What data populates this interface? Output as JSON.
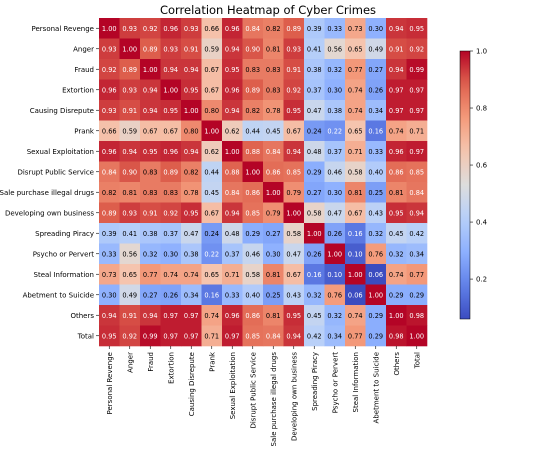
{
  "chart_data": {
    "type": "heatmap",
    "title": "Correlation Heatmap of Cyber Crimes",
    "labels": [
      "Personal Revenge",
      "Anger",
      "Fraud",
      "Extortion",
      "Causing Disrepute",
      "Prank",
      "Sexual Exploitation",
      "Disrupt Public Service",
      "Sale purchase illegal drugs",
      "Developing own business",
      "Spreading Piracy",
      "Psycho or Pervert",
      "Steal Information",
      "Abetment to Suicide",
      "Others",
      "Total"
    ],
    "matrix": [
      [
        1.0,
        0.93,
        0.92,
        0.96,
        0.93,
        0.66,
        0.96,
        0.84,
        0.82,
        0.89,
        0.39,
        0.33,
        0.73,
        0.3,
        0.94,
        0.95
      ],
      [
        0.93,
        1.0,
        0.89,
        0.93,
        0.91,
        0.59,
        0.94,
        0.9,
        0.81,
        0.93,
        0.41,
        0.56,
        0.65,
        0.49,
        0.91,
        0.92
      ],
      [
        0.92,
        0.89,
        1.0,
        0.94,
        0.94,
        0.67,
        0.95,
        0.83,
        0.83,
        0.91,
        0.38,
        0.32,
        0.77,
        0.27,
        0.94,
        0.99
      ],
      [
        0.96,
        0.93,
        0.94,
        1.0,
        0.95,
        0.67,
        0.96,
        0.89,
        0.83,
        0.92,
        0.37,
        0.3,
        0.74,
        0.26,
        0.97,
        0.97
      ],
      [
        0.93,
        0.91,
        0.94,
        0.95,
        1.0,
        0.8,
        0.94,
        0.82,
        0.78,
        0.95,
        0.47,
        0.38,
        0.74,
        0.34,
        0.97,
        0.97
      ],
      [
        0.66,
        0.59,
        0.67,
        0.67,
        0.8,
        1.0,
        0.62,
        0.44,
        0.45,
        0.67,
        0.24,
        0.22,
        0.65,
        0.16,
        0.74,
        0.71
      ],
      [
        0.96,
        0.94,
        0.95,
        0.96,
        0.94,
        0.62,
        1.0,
        0.88,
        0.84,
        0.94,
        0.48,
        0.37,
        0.71,
        0.33,
        0.96,
        0.97
      ],
      [
        0.84,
        0.9,
        0.83,
        0.89,
        0.82,
        0.44,
        0.88,
        1.0,
        0.86,
        0.85,
        0.29,
        0.46,
        0.58,
        0.4,
        0.86,
        0.85
      ],
      [
        0.82,
        0.81,
        0.83,
        0.83,
        0.78,
        0.45,
        0.84,
        0.86,
        1.0,
        0.79,
        0.27,
        0.3,
        0.81,
        0.25,
        0.81,
        0.84
      ],
      [
        0.89,
        0.93,
        0.91,
        0.92,
        0.95,
        0.67,
        0.94,
        0.85,
        0.79,
        1.0,
        0.58,
        0.47,
        0.67,
        0.43,
        0.95,
        0.94
      ],
      [
        0.39,
        0.41,
        0.38,
        0.37,
        0.47,
        0.24,
        0.48,
        0.29,
        0.27,
        0.58,
        1.0,
        0.26,
        0.16,
        0.32,
        0.45,
        0.42
      ],
      [
        0.33,
        0.56,
        0.32,
        0.3,
        0.38,
        0.22,
        0.37,
        0.46,
        0.3,
        0.47,
        0.26,
        1.0,
        0.1,
        0.76,
        0.32,
        0.34
      ],
      [
        0.73,
        0.65,
        0.77,
        0.74,
        0.74,
        0.65,
        0.71,
        0.58,
        0.81,
        0.67,
        0.16,
        0.1,
        1.0,
        0.06,
        0.74,
        0.77
      ],
      [
        0.3,
        0.49,
        0.27,
        0.26,
        0.34,
        0.16,
        0.33,
        0.4,
        0.25,
        0.43,
        0.32,
        0.76,
        0.06,
        1.0,
        0.29,
        0.29
      ],
      [
        0.94,
        0.91,
        0.94,
        0.97,
        0.97,
        0.74,
        0.96,
        0.86,
        0.81,
        0.95,
        0.45,
        0.32,
        0.74,
        0.29,
        1.0,
        0.98
      ],
      [
        0.95,
        0.92,
        0.99,
        0.97,
        0.97,
        0.71,
        0.97,
        0.85,
        0.84,
        0.94,
        0.42,
        0.34,
        0.77,
        0.29,
        0.98,
        1.0
      ]
    ],
    "colormap": "coolwarm",
    "vmin": 0.06,
    "vmax": 1.0,
    "colorbar_ticks": [
      "0.2",
      "0.4",
      "0.6",
      "0.8",
      "1.0"
    ],
    "colors": {
      "low": "#3b4cc0",
      "mid": "#dddddd",
      "high": "#b40426"
    }
  }
}
